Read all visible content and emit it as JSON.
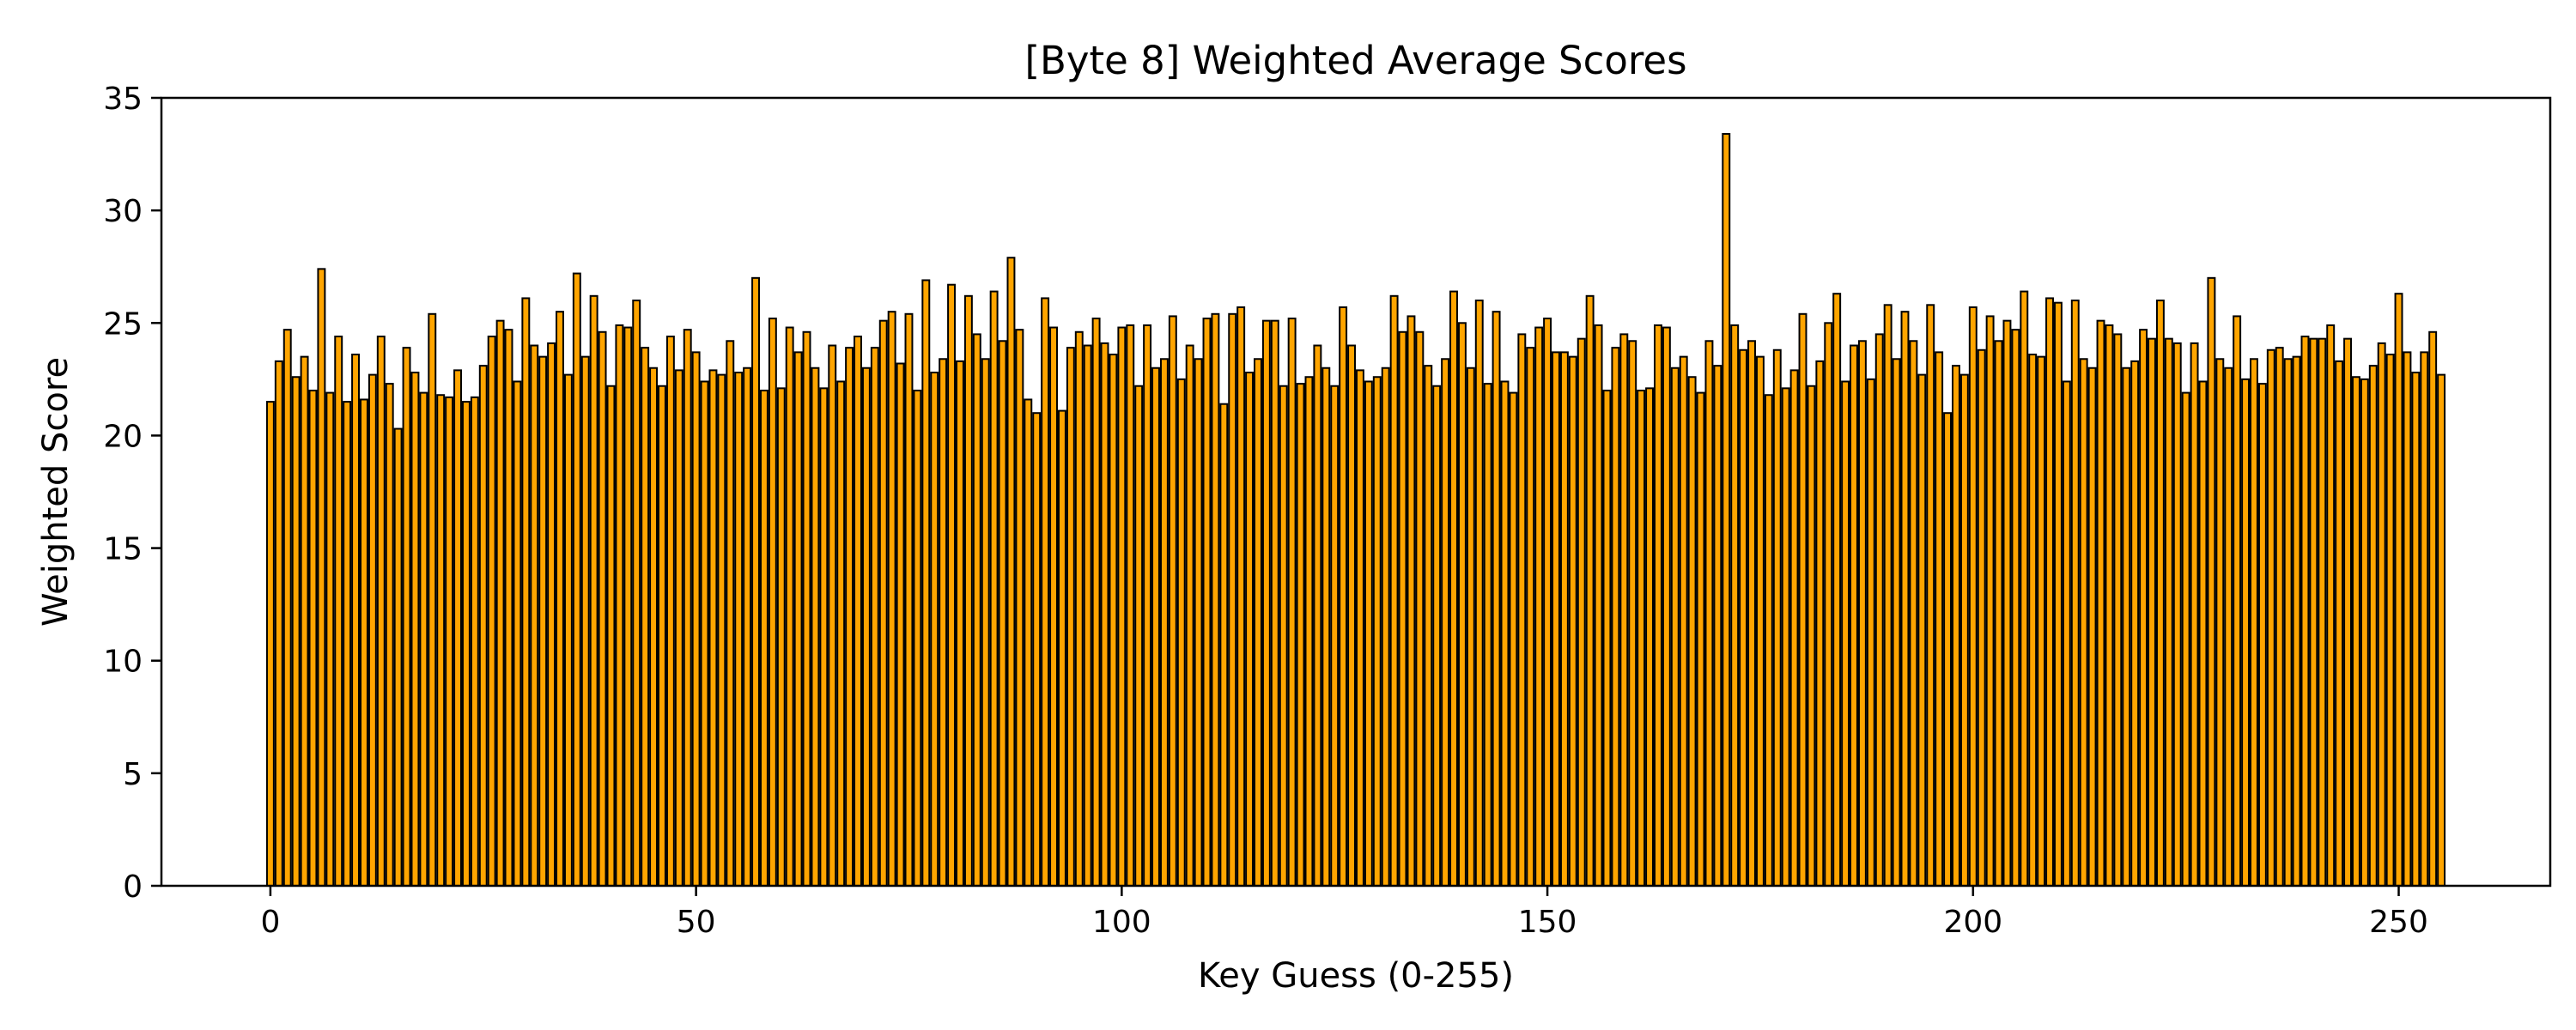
{
  "chart_data": {
    "type": "bar",
    "title": "[Byte 8] Weighted Average Scores",
    "xlabel": "Key Guess (0-255)",
    "ylabel": "Weighted Score",
    "xlim": [
      -12.8,
      267.8
    ],
    "ylim": [
      0,
      35
    ],
    "xticks": [
      "0",
      "50",
      "100",
      "150",
      "200",
      "250"
    ],
    "yticks": [
      "0",
      "5",
      "10",
      "15",
      "20",
      "25",
      "30",
      "35"
    ],
    "grid": false,
    "legend": "none",
    "colors": {
      "bar_fill": "#FFA500",
      "bar_edge": "#000000",
      "axis": "#000000",
      "background": "#ffffff"
    },
    "x": [
      0,
      1,
      2,
      3,
      4,
      5,
      6,
      7,
      8,
      9,
      10,
      11,
      12,
      13,
      14,
      15,
      16,
      17,
      18,
      19,
      20,
      21,
      22,
      23,
      24,
      25,
      26,
      27,
      28,
      29,
      30,
      31,
      32,
      33,
      34,
      35,
      36,
      37,
      38,
      39,
      40,
      41,
      42,
      43,
      44,
      45,
      46,
      47,
      48,
      49,
      50,
      51,
      52,
      53,
      54,
      55,
      56,
      57,
      58,
      59,
      60,
      61,
      62,
      63,
      64,
      65,
      66,
      67,
      68,
      69,
      70,
      71,
      72,
      73,
      74,
      75,
      76,
      77,
      78,
      79,
      80,
      81,
      82,
      83,
      84,
      85,
      86,
      87,
      88,
      89,
      90,
      91,
      92,
      93,
      94,
      95,
      96,
      97,
      98,
      99,
      100,
      101,
      102,
      103,
      104,
      105,
      106,
      107,
      108,
      109,
      110,
      111,
      112,
      113,
      114,
      115,
      116,
      117,
      118,
      119,
      120,
      121,
      122,
      123,
      124,
      125,
      126,
      127,
      128,
      129,
      130,
      131,
      132,
      133,
      134,
      135,
      136,
      137,
      138,
      139,
      140,
      141,
      142,
      143,
      144,
      145,
      146,
      147,
      148,
      149,
      150,
      151,
      152,
      153,
      154,
      155,
      156,
      157,
      158,
      159,
      160,
      161,
      162,
      163,
      164,
      165,
      166,
      167,
      168,
      169,
      170,
      171,
      172,
      173,
      174,
      175,
      176,
      177,
      178,
      179,
      180,
      181,
      182,
      183,
      184,
      185,
      186,
      187,
      188,
      189,
      190,
      191,
      192,
      193,
      194,
      195,
      196,
      197,
      198,
      199,
      200,
      201,
      202,
      203,
      204,
      205,
      206,
      207,
      208,
      209,
      210,
      211,
      212,
      213,
      214,
      215,
      216,
      217,
      218,
      219,
      220,
      221,
      222,
      223,
      224,
      225,
      226,
      227,
      228,
      229,
      230,
      231,
      232,
      233,
      234,
      235,
      236,
      237,
      238,
      239,
      240,
      241,
      242,
      243,
      244,
      245,
      246,
      247,
      248,
      249,
      250,
      251,
      252,
      253,
      254,
      255
    ],
    "values": [
      21.5,
      23.3,
      24.7,
      22.6,
      23.5,
      22.0,
      27.4,
      21.9,
      24.4,
      21.5,
      23.6,
      21.6,
      22.7,
      24.4,
      22.3,
      20.3,
      23.9,
      22.8,
      21.9,
      25.4,
      21.8,
      21.7,
      22.9,
      21.5,
      21.7,
      23.1,
      24.4,
      25.1,
      24.7,
      22.4,
      26.1,
      24.0,
      23.5,
      24.1,
      25.5,
      22.7,
      27.2,
      23.5,
      26.2,
      24.6,
      22.2,
      24.9,
      24.8,
      26.0,
      23.9,
      23.0,
      22.2,
      24.4,
      22.9,
      24.7,
      23.7,
      22.4,
      22.9,
      22.7,
      24.2,
      22.8,
      23.0,
      27.0,
      22.0,
      25.2,
      22.1,
      24.8,
      23.7,
      24.6,
      23.0,
      22.1,
      24.0,
      22.4,
      23.9,
      24.4,
      23.0,
      23.9,
      25.1,
      25.5,
      23.2,
      25.4,
      22.0,
      26.9,
      22.8,
      23.4,
      26.7,
      23.3,
      26.2,
      24.5,
      23.4,
      26.4,
      24.2,
      27.9,
      24.7,
      21.6,
      21.0,
      26.1,
      24.8,
      21.1,
      23.9,
      24.6,
      24.0,
      25.2,
      24.1,
      23.6,
      24.8,
      24.9,
      22.2,
      24.9,
      23.0,
      23.4,
      25.3,
      22.5,
      24.0,
      23.4,
      25.2,
      25.4,
      21.4,
      25.4,
      25.7,
      22.8,
      23.4,
      25.1,
      25.1,
      22.2,
      25.2,
      22.3,
      22.6,
      24.0,
      23.0,
      22.2,
      25.7,
      24.0,
      22.9,
      22.4,
      22.6,
      23.0,
      26.2,
      24.6,
      25.3,
      24.6,
      23.1,
      22.2,
      23.4,
      26.4,
      25.0,
      23.0,
      26.0,
      22.3,
      25.5,
      22.4,
      21.9,
      24.5,
      23.9,
      24.8,
      25.2,
      23.7,
      23.7,
      23.5,
      24.3,
      26.2,
      24.9,
      22.0,
      23.9,
      24.5,
      24.2,
      22.0,
      22.1,
      24.9,
      24.8,
      23.0,
      23.5,
      22.6,
      21.9,
      24.2,
      23.1,
      33.4,
      24.9,
      23.8,
      24.2,
      23.5,
      21.8,
      23.8,
      22.1,
      22.9,
      25.4,
      22.2,
      23.3,
      25.0,
      26.3,
      22.4,
      24.0,
      24.2,
      22.5,
      24.5,
      25.8,
      23.4,
      25.5,
      24.2,
      22.7,
      25.8,
      23.7,
      21.0,
      23.1,
      22.7,
      25.7,
      23.8,
      25.3,
      24.2,
      25.1,
      24.7,
      26.4,
      23.6,
      23.5,
      26.1,
      25.9,
      22.4,
      26.0,
      23.4,
      23.0,
      25.1,
      24.9,
      24.5,
      23.0,
      23.3,
      24.7,
      24.3,
      26.0,
      24.3,
      24.1,
      21.9,
      24.1,
      22.4,
      27.0,
      23.4,
      23.0,
      25.3,
      22.5,
      23.4,
      22.3,
      23.8,
      23.9,
      23.4,
      23.5,
      24.4,
      24.3,
      24.3,
      24.9,
      23.3,
      24.3,
      22.6,
      22.5,
      23.1,
      24.1,
      23.6,
      26.3,
      23.7,
      22.8,
      23.7,
      24.6,
      22.7
    ]
  }
}
